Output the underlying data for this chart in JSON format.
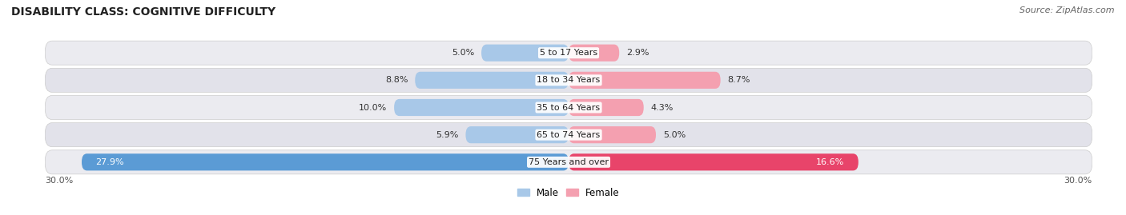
{
  "title": "DISABILITY CLASS: COGNITIVE DIFFICULTY",
  "source": "Source: ZipAtlas.com",
  "categories": [
    "5 to 17 Years",
    "18 to 34 Years",
    "35 to 64 Years",
    "65 to 74 Years",
    "75 Years and over"
  ],
  "male_values": [
    5.0,
    8.8,
    10.0,
    5.9,
    27.9
  ],
  "female_values": [
    2.9,
    8.7,
    4.3,
    5.0,
    16.6
  ],
  "male_color_light": "#a8c8e8",
  "male_color_strong": "#5b9bd5",
  "female_color_light": "#f4a0b0",
  "female_color_strong": "#e8446a",
  "row_bg_color": "#ebebf0",
  "row_bg_color2": "#e2e2ea",
  "x_max": 30.0,
  "x_min": -30.0,
  "title_fontsize": 10,
  "source_fontsize": 8,
  "label_fontsize": 8,
  "category_fontsize": 8,
  "value_fontsize": 8,
  "legend_fontsize": 8.5
}
